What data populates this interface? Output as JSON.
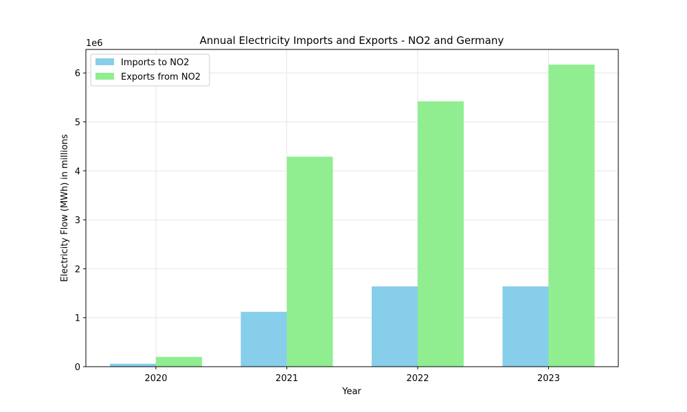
{
  "chart_data": {
    "type": "bar",
    "title": "Annual Electricity Imports and Exports - NO2 and Germany",
    "xlabel": "Year",
    "ylabel": "Electricity Flow (MWh) in millions",
    "y_offset_label": "1e6",
    "categories": [
      "2020",
      "2021",
      "2022",
      "2023"
    ],
    "series": [
      {
        "name": "Imports to NO2",
        "color": "#87ceeb",
        "values": [
          60000,
          1120000,
          1640000,
          1640000
        ]
      },
      {
        "name": "Exports from NO2",
        "color": "#90ee90",
        "values": [
          200000,
          4290000,
          5420000,
          6170000
        ]
      }
    ],
    "ylim": [
      0,
      6480000
    ],
    "yticks": [
      0,
      1000000,
      2000000,
      3000000,
      4000000,
      5000000,
      6000000
    ],
    "ytick_labels": [
      "0",
      "1",
      "2",
      "3",
      "4",
      "5",
      "6"
    ],
    "grid": true,
    "legend_position": "top-left"
  }
}
